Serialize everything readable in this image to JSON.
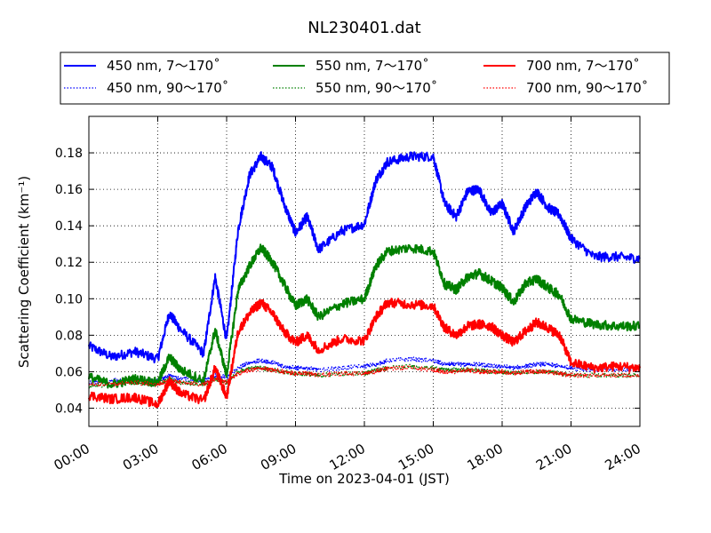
{
  "chart_data": {
    "type": "line",
    "title": "NL230401.dat",
    "xlabel": "Time on 2023-04-01 (JST)",
    "ylabel": "Scattering Coefficient (km⁻¹)",
    "xlim": [
      "00:00",
      "24:00"
    ],
    "ylim": [
      0.03,
      0.2
    ],
    "x_ticks": [
      "00:00",
      "03:00",
      "06:00",
      "09:00",
      "12:00",
      "15:00",
      "18:00",
      "21:00",
      "24:00"
    ],
    "y_ticks": [
      "0.04",
      "0.06",
      "0.08",
      "0.10",
      "0.12",
      "0.14",
      "0.16",
      "0.18"
    ],
    "grid": true,
    "legend_position": "top",
    "x": [
      "00:00",
      "01:00",
      "02:00",
      "03:00",
      "03:30",
      "04:00",
      "05:00",
      "05:30",
      "06:00",
      "06:30",
      "07:00",
      "07:30",
      "08:00",
      "08:30",
      "09:00",
      "09:30",
      "10:00",
      "11:00",
      "12:00",
      "12:30",
      "13:00",
      "14:00",
      "15:00",
      "15:30",
      "16:00",
      "16:30",
      "17:00",
      "17:30",
      "18:00",
      "18:30",
      "19:00",
      "19:30",
      "20:00",
      "20:30",
      "21:00",
      "22:00",
      "23:00",
      "24:00"
    ],
    "series": [
      {
        "name": "450 nm, 7～170˚",
        "color": "#0000ff",
        "style": "solid",
        "values": [
          0.074,
          0.068,
          0.071,
          0.067,
          0.092,
          0.083,
          0.07,
          0.112,
          0.077,
          0.138,
          0.168,
          0.178,
          0.172,
          0.152,
          0.136,
          0.145,
          0.127,
          0.137,
          0.141,
          0.165,
          0.175,
          0.178,
          0.178,
          0.152,
          0.145,
          0.159,
          0.16,
          0.147,
          0.152,
          0.137,
          0.15,
          0.159,
          0.15,
          0.146,
          0.133,
          0.123,
          0.123,
          0.122
        ]
      },
      {
        "name": "450 nm, 90～170˚",
        "color": "#0000ff",
        "style": "dotted",
        "values": [
          0.054,
          0.055,
          0.056,
          0.055,
          0.058,
          0.056,
          0.055,
          0.058,
          0.057,
          0.062,
          0.065,
          0.066,
          0.065,
          0.063,
          0.062,
          0.062,
          0.061,
          0.062,
          0.063,
          0.064,
          0.066,
          0.067,
          0.066,
          0.064,
          0.064,
          0.064,
          0.064,
          0.063,
          0.063,
          0.062,
          0.063,
          0.064,
          0.064,
          0.063,
          0.062,
          0.061,
          0.061,
          0.062
        ]
      },
      {
        "name": "550 nm, 7～170˚",
        "color": "#008000",
        "style": "solid",
        "values": [
          0.057,
          0.053,
          0.056,
          0.054,
          0.068,
          0.061,
          0.055,
          0.083,
          0.058,
          0.105,
          0.118,
          0.128,
          0.12,
          0.108,
          0.096,
          0.1,
          0.09,
          0.097,
          0.1,
          0.118,
          0.126,
          0.128,
          0.126,
          0.108,
          0.105,
          0.112,
          0.114,
          0.11,
          0.106,
          0.098,
          0.108,
          0.111,
          0.106,
          0.102,
          0.089,
          0.086,
          0.085,
          0.085
        ]
      },
      {
        "name": "550 nm, 90～170˚",
        "color": "#008000",
        "style": "dotted",
        "values": [
          0.052,
          0.053,
          0.054,
          0.053,
          0.056,
          0.054,
          0.053,
          0.056,
          0.054,
          0.06,
          0.062,
          0.062,
          0.061,
          0.06,
          0.059,
          0.059,
          0.058,
          0.059,
          0.059,
          0.061,
          0.062,
          0.063,
          0.062,
          0.061,
          0.061,
          0.061,
          0.061,
          0.06,
          0.06,
          0.059,
          0.06,
          0.06,
          0.06,
          0.059,
          0.058,
          0.058,
          0.058,
          0.058
        ]
      },
      {
        "name": "700 nm, 7～170˚",
        "color": "#ff0000",
        "style": "solid",
        "values": [
          0.047,
          0.045,
          0.046,
          0.042,
          0.055,
          0.048,
          0.044,
          0.062,
          0.046,
          0.082,
          0.092,
          0.098,
          0.092,
          0.082,
          0.076,
          0.08,
          0.072,
          0.078,
          0.077,
          0.09,
          0.098,
          0.097,
          0.096,
          0.084,
          0.08,
          0.085,
          0.086,
          0.085,
          0.08,
          0.076,
          0.082,
          0.087,
          0.084,
          0.08,
          0.065,
          0.062,
          0.063,
          0.062
        ]
      },
      {
        "name": "700 nm, 90～170˚",
        "color": "#ff0000",
        "style": "dotted",
        "values": [
          0.053,
          0.053,
          0.054,
          0.053,
          0.055,
          0.054,
          0.053,
          0.056,
          0.054,
          0.059,
          0.061,
          0.062,
          0.061,
          0.06,
          0.059,
          0.059,
          0.058,
          0.059,
          0.059,
          0.06,
          0.062,
          0.062,
          0.061,
          0.06,
          0.06,
          0.061,
          0.06,
          0.06,
          0.06,
          0.059,
          0.06,
          0.06,
          0.06,
          0.059,
          0.058,
          0.058,
          0.058,
          0.058
        ]
      }
    ]
  }
}
